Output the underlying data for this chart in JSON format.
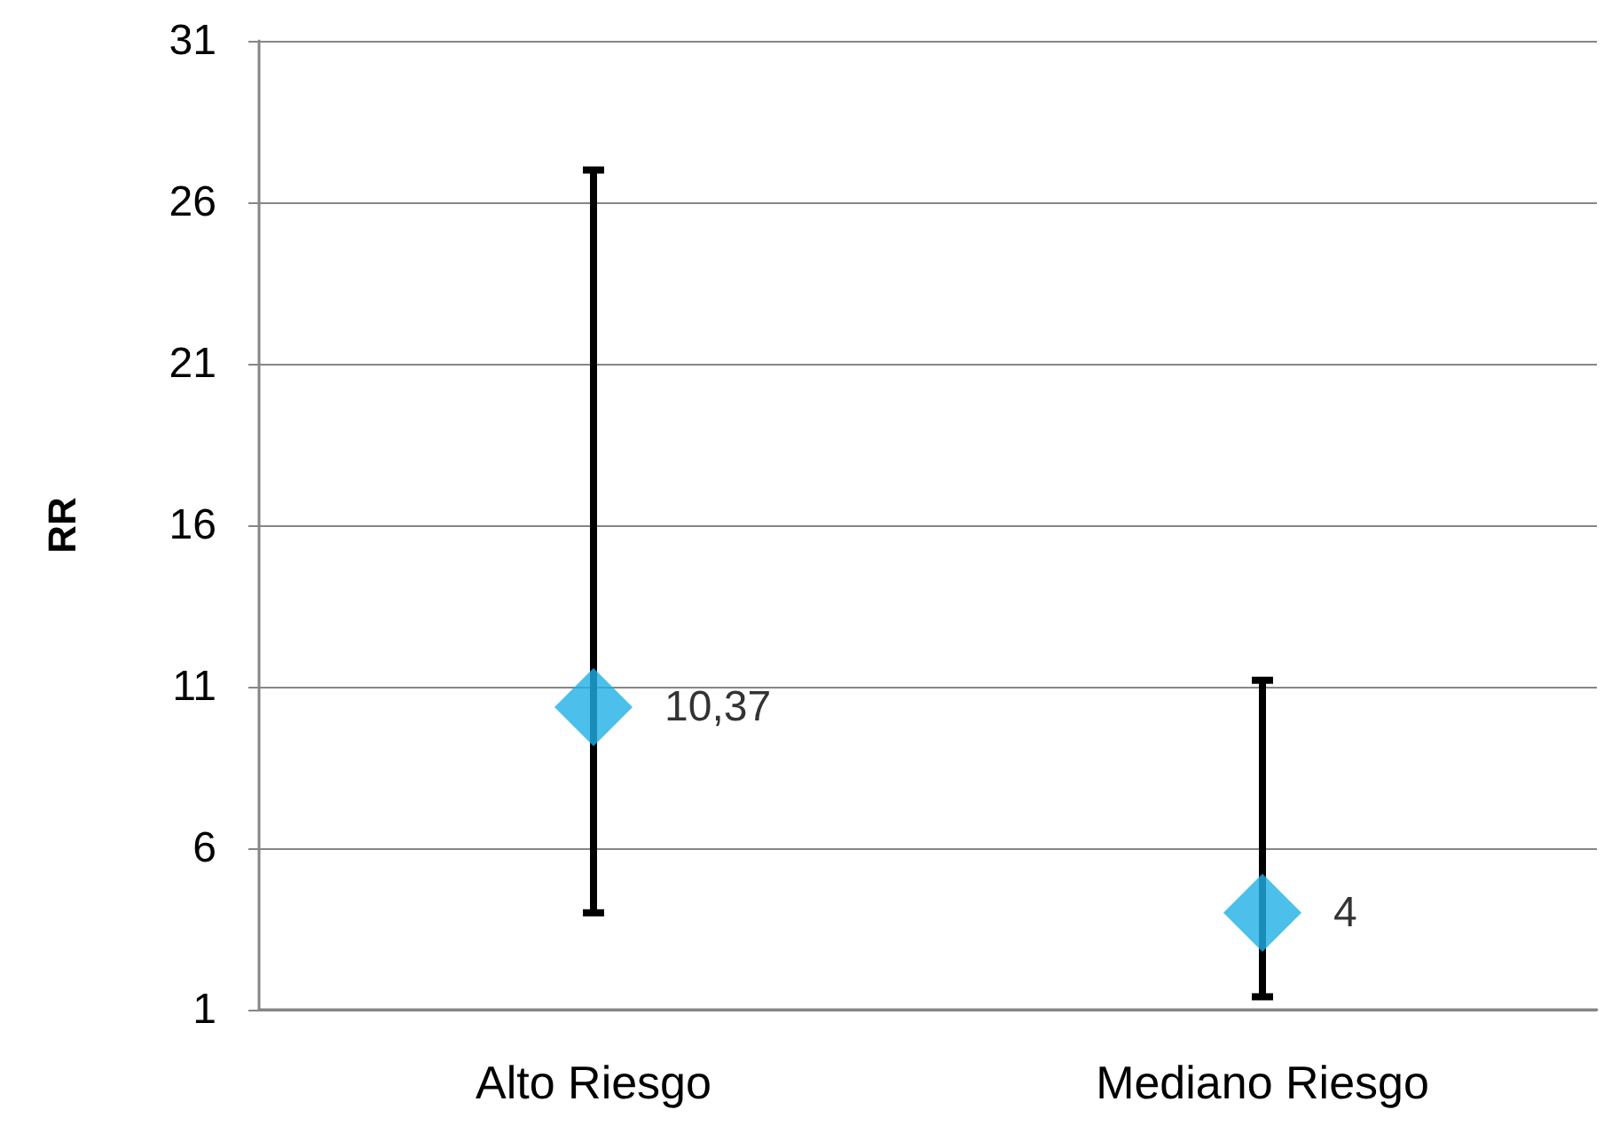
{
  "chart_data": {
    "type": "scatter",
    "ylabel": "RR",
    "categories": [
      "Alto Riesgo",
      "Mediano Riesgo"
    ],
    "values": [
      10.37,
      4
    ],
    "errors": [
      [
        4,
        27
      ],
      [
        1.4,
        11.2
      ]
    ],
    "value_labels": [
      "10,37",
      "4"
    ],
    "color": "#1fafe6",
    "marker": "diamond",
    "ylim": [
      1,
      31
    ],
    "yticks": [
      1,
      6,
      11,
      16,
      21,
      26,
      31
    ],
    "grid": "y"
  }
}
